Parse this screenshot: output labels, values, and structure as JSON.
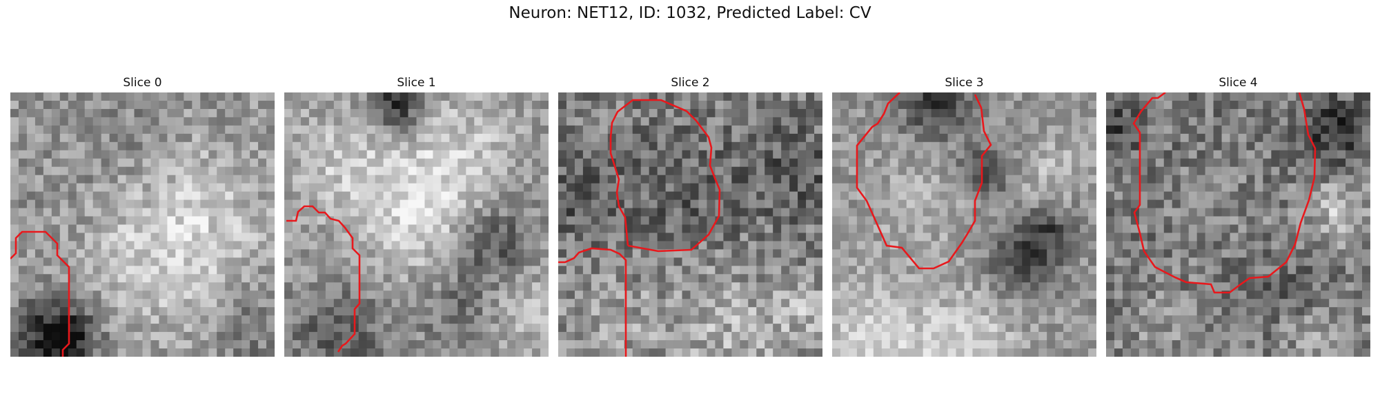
{
  "figure": {
    "title": "Neuron: NET12, ID: 1032, Predicted Label: CV",
    "contour_color": "#e8181c"
  },
  "slices": [
    {
      "title": "Slice 0"
    },
    {
      "title": "Slice 1"
    },
    {
      "title": "Slice 2"
    },
    {
      "title": "Slice 3"
    },
    {
      "title": "Slice 4"
    }
  ]
}
